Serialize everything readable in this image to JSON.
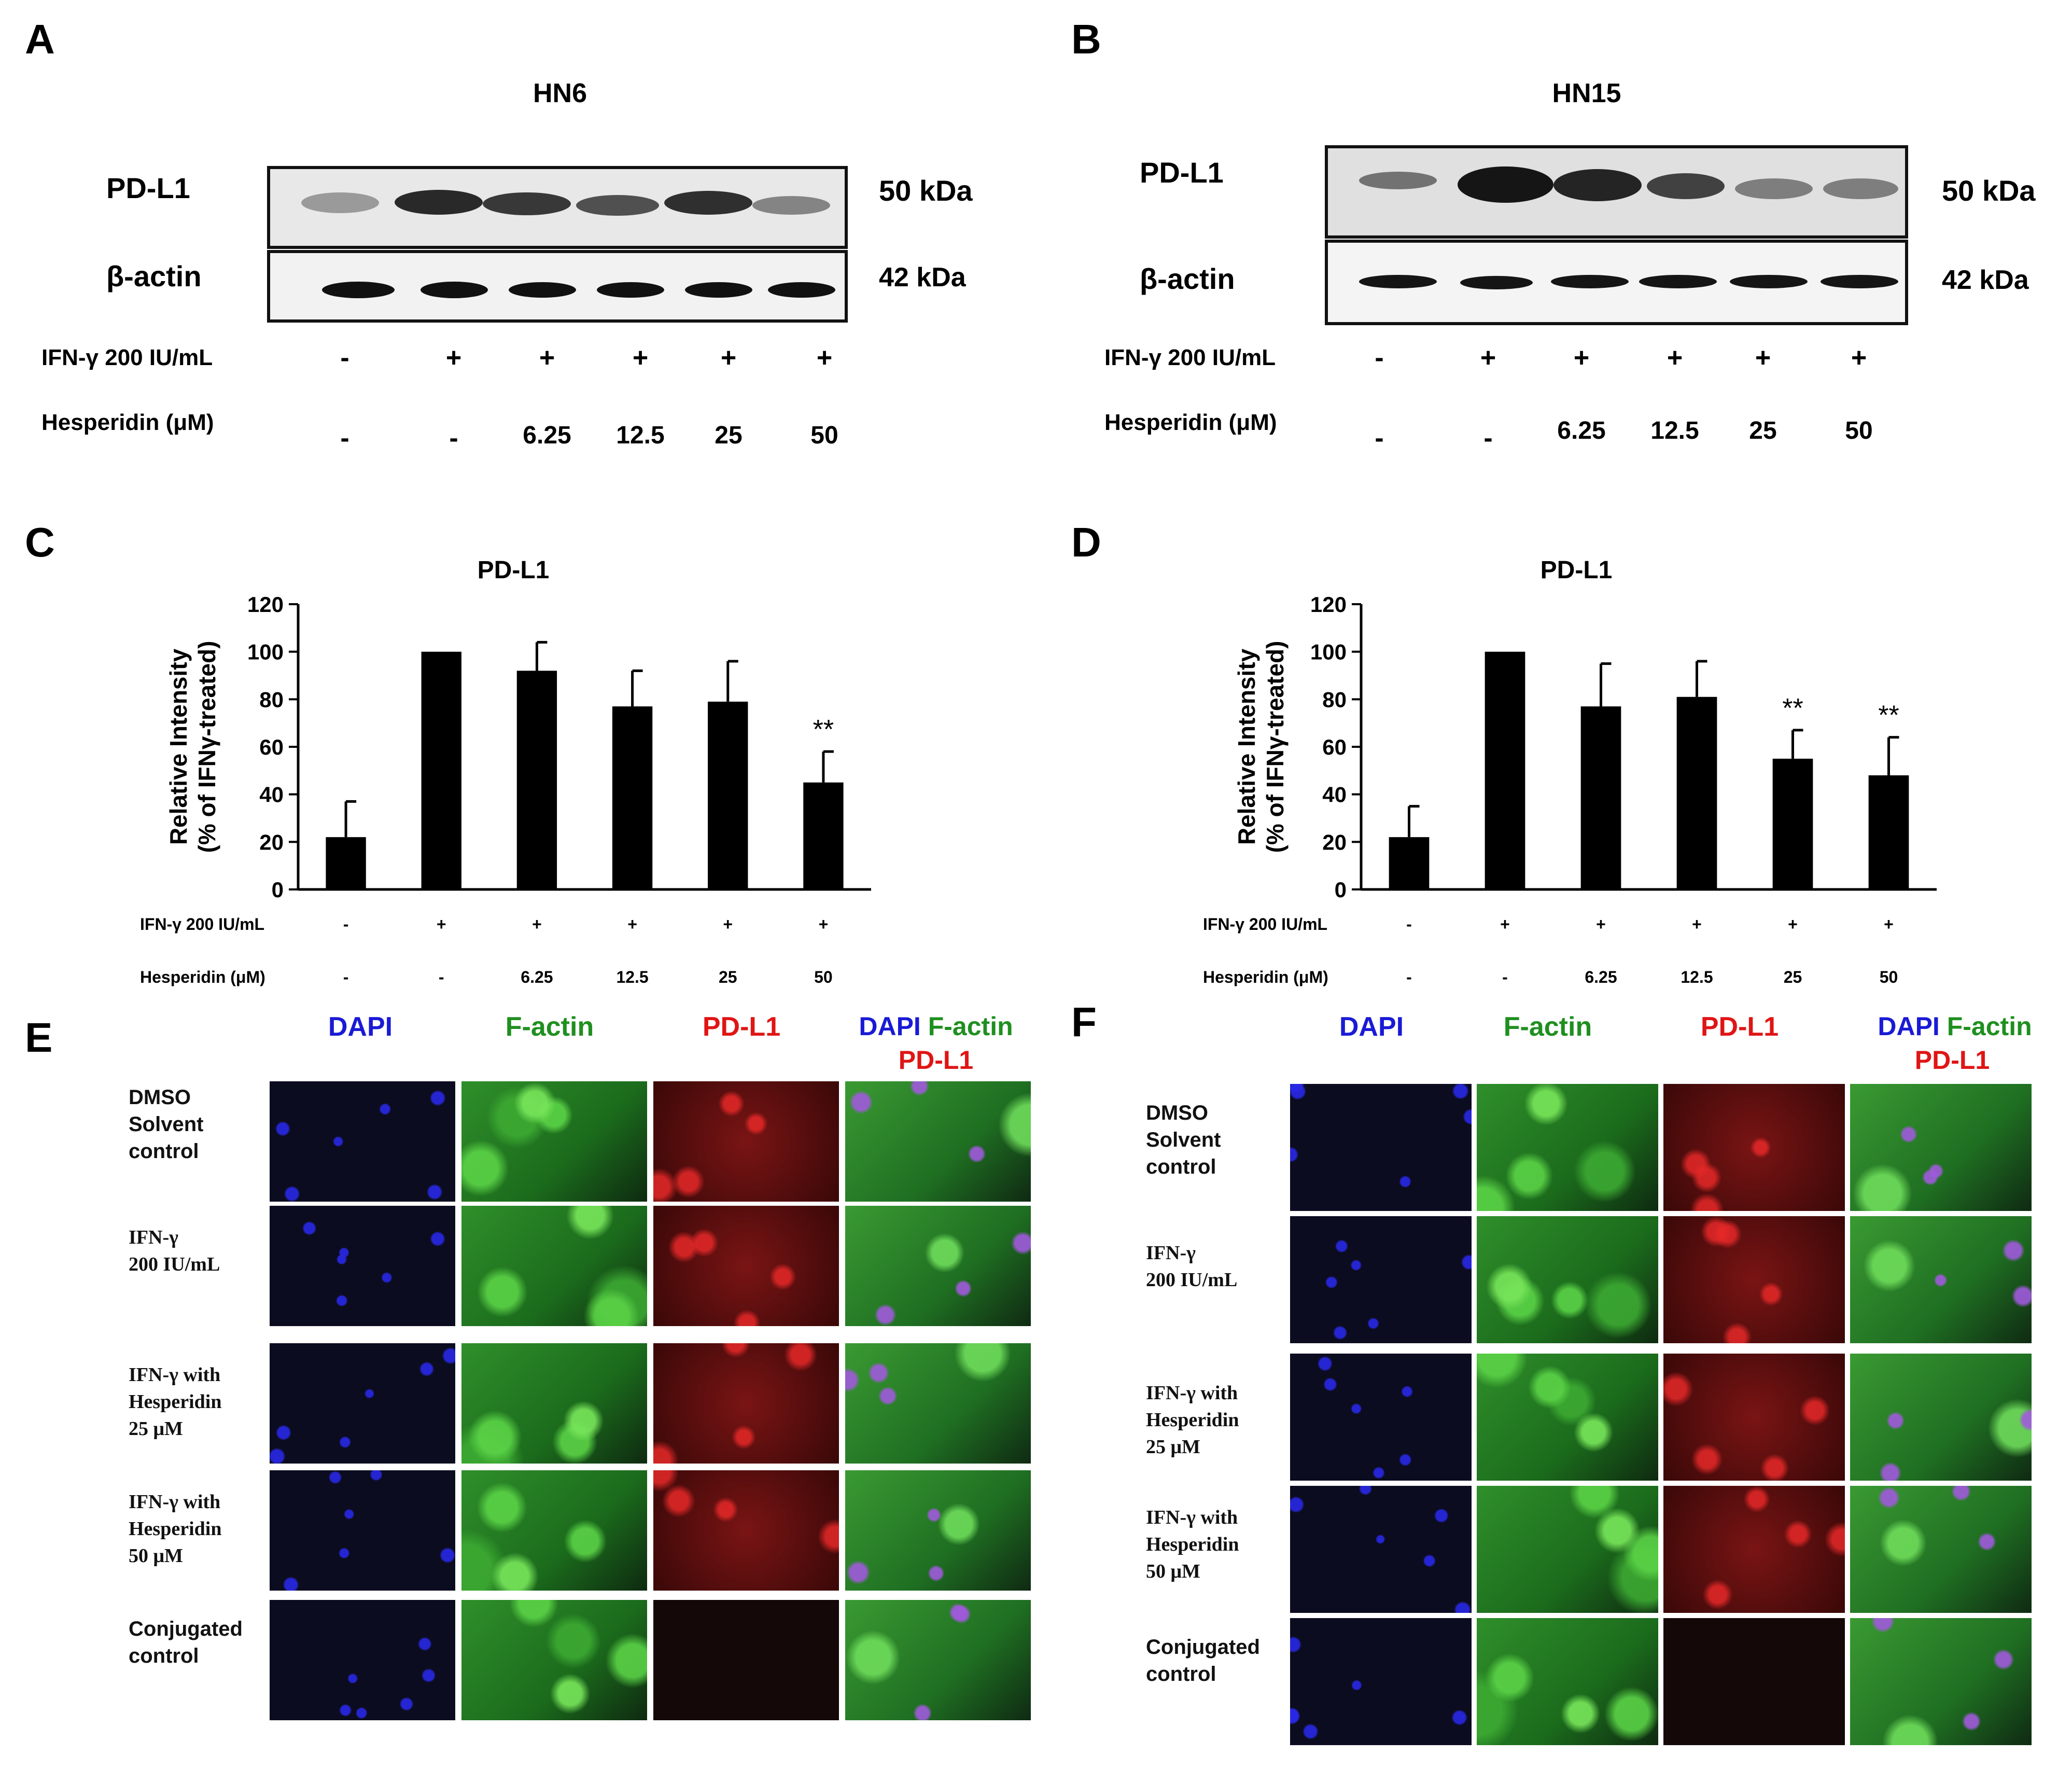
{
  "panel_letters": [
    "A",
    "B",
    "C",
    "D",
    "E",
    "F"
  ],
  "blot_A": {
    "cell_line": "HN6",
    "rows": [
      {
        "label": "PD-L1",
        "mw": "50 kDa"
      },
      {
        "label": "β-actin",
        "mw": "42 kDa"
      }
    ],
    "ifn_label": "IFN-γ 200 IU/mL",
    "ifn_values": [
      "-",
      "+",
      "+",
      "+",
      "+",
      "+"
    ],
    "hesp_label": "Hesperidin (μM)",
    "hesp_values": [
      "-",
      "-",
      "6.25",
      "12.5",
      "25",
      "50"
    ]
  },
  "blot_B": {
    "cell_line": "HN15",
    "rows": [
      {
        "label": "PD-L1",
        "mw": "50 kDa"
      },
      {
        "label": "β-actin",
        "mw": "42 kDa"
      }
    ],
    "ifn_label": "IFN-γ 200 IU/mL",
    "ifn_values": [
      "-",
      "+",
      "+",
      "+",
      "+",
      "+"
    ],
    "hesp_label": "Hesperidin (μM)",
    "hesp_values": [
      "-",
      "-",
      "6.25",
      "12.5",
      "25",
      "50"
    ]
  },
  "chart_data": [
    {
      "type": "bar",
      "panel": "C",
      "title": "PD-L1",
      "ylabel_line1": "Relative Intensity",
      "ylabel_line2": "(% of IFNγ-treated)",
      "ylim": [
        0,
        120
      ],
      "yticks": [
        0,
        20,
        40,
        60,
        80,
        100,
        120
      ],
      "values": [
        22,
        100,
        92,
        77,
        79,
        45
      ],
      "errors": [
        15,
        0,
        12,
        15,
        17,
        13
      ],
      "significance": [
        "",
        "",
        "",
        "",
        "",
        "**"
      ],
      "ifn_label": "IFN-γ 200 IU/mL",
      "ifn_values": [
        "-",
        "+",
        "+",
        "+",
        "+",
        "+"
      ],
      "hesp_label": "Hesperidin (μM)",
      "hesp_values": [
        "-",
        "-",
        "6.25",
        "12.5",
        "25",
        "50"
      ]
    },
    {
      "type": "bar",
      "panel": "D",
      "title": "PD-L1",
      "ylabel_line1": "Relative Intensity",
      "ylabel_line2": "(% of IFNγ-treated)",
      "ylim": [
        0,
        120
      ],
      "yticks": [
        0,
        20,
        40,
        60,
        80,
        100,
        120
      ],
      "values": [
        22,
        100,
        77,
        81,
        55,
        48
      ],
      "errors": [
        13,
        0,
        18,
        15,
        12,
        16
      ],
      "significance": [
        "",
        "",
        "",
        "",
        "**",
        "**"
      ],
      "ifn_label": "IFN-γ 200 IU/mL",
      "ifn_values": [
        "-",
        "+",
        "+",
        "+",
        "+",
        "+"
      ],
      "hesp_label": "Hesperidin (μM)",
      "hesp_values": [
        "-",
        "-",
        "6.25",
        "12.5",
        "25",
        "50"
      ]
    }
  ],
  "micro_E": {
    "channels": [
      "DAPI",
      "F-actin",
      "PD-L1"
    ],
    "merge_line1_a": "DAPI",
    "merge_line1_b": "F-actin",
    "merge_line2": "PD-L1",
    "rows": [
      {
        "l1": "DMSO",
        "l2": "Solvent",
        "l3": "control"
      },
      {
        "l1": "IFN-γ",
        "l2": "200 IU/mL",
        "l3": ""
      },
      {
        "l1": "IFN-γ with",
        "l2": "Hesperidin",
        "l3": "25 μM"
      },
      {
        "l1": "IFN-γ with",
        "l2": "Hesperidin",
        "l3": "50 μM"
      },
      {
        "l1": "Conjugated",
        "l2": "control",
        "l3": ""
      }
    ]
  },
  "micro_F": {
    "channels": [
      "DAPI",
      "F-actin",
      "PD-L1"
    ],
    "merge_line1_a": "DAPI",
    "merge_line1_b": "F-actin",
    "merge_line2": "PD-L1",
    "rows": [
      {
        "l1": "DMSO",
        "l2": "Solvent",
        "l3": "control"
      },
      {
        "l1": "IFN-γ",
        "l2": "200 IU/mL",
        "l3": ""
      },
      {
        "l1": "IFN-γ with",
        "l2": "Hesperidin",
        "l3": "25 μM"
      },
      {
        "l1": "IFN-γ with",
        "l2": "Hesperidin",
        "l3": "50 μM"
      },
      {
        "l1": "Conjugated",
        "l2": "control",
        "l3": ""
      }
    ]
  },
  "colors": {
    "dapi": "#1a1ad6",
    "factin": "#1f8f1f",
    "pdl1": "#e01515",
    "bar": "#000000"
  }
}
